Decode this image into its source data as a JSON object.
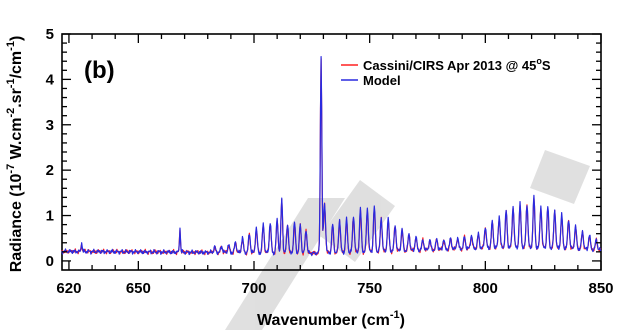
{
  "chart_data": {
    "type": "line",
    "panel_label": "(b)",
    "title": "",
    "xlabel": "Wavenumber",
    "xlabel_unit_base": "(cm",
    "xlabel_unit_exp": "-1",
    "xlabel_unit_close": ")",
    "ylabel": "Radiance (10",
    "ylabel_exp1": "-7",
    "ylabel_mid1": " W.cm",
    "ylabel_exp2": "-2",
    "ylabel_mid2": ".sr",
    "ylabel_exp3": "-1",
    "ylabel_mid3": "/cm",
    "ylabel_exp4": "-1",
    "ylabel_close": ")",
    "xlim": [
      617,
      850
    ],
    "ylim": [
      -0.2,
      5.0
    ],
    "xticks": [
      620,
      650,
      700,
      750,
      800,
      850
    ],
    "yticks": [
      0,
      1,
      2,
      3,
      4,
      5
    ],
    "grid": false,
    "legend_position": "top-right",
    "legend": {
      "entry1_text": "Cassini/CIRS Apr 2013 @ 45",
      "entry1_sup": "o",
      "entry1_tail": "S",
      "entry2_text": "Model"
    },
    "baseline": [
      [
        617,
        0.21
      ],
      [
        650,
        0.2
      ],
      [
        700,
        0.18
      ],
      [
        725,
        0.17
      ],
      [
        750,
        0.2
      ],
      [
        780,
        0.25
      ],
      [
        810,
        0.3
      ],
      [
        835,
        0.28
      ],
      [
        850,
        0.24
      ]
    ],
    "series": [
      {
        "name": "Cassini/CIRS Apr 2013 @ 45°S",
        "color": "#ff2020",
        "features": [
          [
            625.5,
            0.18,
            0.3
          ],
          [
            668.0,
            0.52,
            0.3
          ],
          [
            683,
            0.1,
            0.55
          ],
          [
            686,
            0.13,
            0.55
          ],
          [
            689,
            0.15,
            0.55
          ],
          [
            692,
            0.22,
            0.55
          ],
          [
            695,
            0.3,
            0.55
          ],
          [
            698,
            0.4,
            0.55
          ],
          [
            701,
            0.52,
            0.55
          ],
          [
            704,
            0.6,
            0.55
          ],
          [
            707,
            0.65,
            0.55
          ],
          [
            710,
            0.7,
            0.55
          ],
          [
            712,
            1.15,
            0.5
          ],
          [
            714.5,
            0.62,
            0.55
          ],
          [
            717.5,
            0.65,
            0.55
          ],
          [
            720,
            0.6,
            0.55
          ],
          [
            722.5,
            0.5,
            0.55
          ],
          [
            729.0,
            4.28,
            0.45
          ],
          [
            730.5,
            1.05,
            0.6
          ],
          [
            734,
            0.6,
            0.55
          ],
          [
            737,
            0.7,
            0.55
          ],
          [
            740,
            0.7,
            0.55
          ],
          [
            743,
            0.78,
            0.55
          ],
          [
            746,
            0.9,
            0.55
          ],
          [
            749,
            0.92,
            0.55
          ],
          [
            752,
            0.95,
            0.55
          ],
          [
            755,
            0.72,
            0.55
          ],
          [
            758,
            0.68,
            0.55
          ],
          [
            761,
            0.55,
            0.55
          ],
          [
            764,
            0.45,
            0.55
          ],
          [
            767,
            0.35,
            0.55
          ],
          [
            770,
            0.28,
            0.55
          ],
          [
            773,
            0.22,
            0.55
          ],
          [
            776,
            0.2,
            0.55
          ],
          [
            779,
            0.22,
            0.55
          ],
          [
            782,
            0.2,
            0.55
          ],
          [
            785,
            0.22,
            0.55
          ],
          [
            788,
            0.23,
            0.55
          ],
          [
            791,
            0.25,
            0.55
          ],
          [
            794,
            0.28,
            0.55
          ],
          [
            797,
            0.3,
            0.55
          ],
          [
            800,
            0.45,
            0.55
          ],
          [
            803,
            0.55,
            0.55
          ],
          [
            806,
            0.65,
            0.55
          ],
          [
            809,
            0.78,
            0.55
          ],
          [
            812,
            0.88,
            0.55
          ],
          [
            815,
            0.92,
            0.55
          ],
          [
            818,
            0.95,
            0.55
          ],
          [
            821,
            1.08,
            0.55
          ],
          [
            824,
            0.88,
            0.55
          ],
          [
            827,
            0.88,
            0.55
          ],
          [
            830,
            0.82,
            0.55
          ],
          [
            833,
            0.7,
            0.55
          ],
          [
            836,
            0.62,
            0.55
          ],
          [
            839,
            0.48,
            0.55
          ],
          [
            842,
            0.38,
            0.55
          ],
          [
            845,
            0.3,
            0.55
          ],
          [
            848,
            0.22,
            0.55
          ]
        ]
      },
      {
        "name": "Model",
        "color": "#2a2adf",
        "features": [
          [
            625.5,
            0.22,
            0.3
          ],
          [
            668.0,
            0.55,
            0.3
          ],
          [
            683,
            0.12,
            0.55
          ],
          [
            686,
            0.14,
            0.55
          ],
          [
            689,
            0.17,
            0.55
          ],
          [
            692,
            0.24,
            0.55
          ],
          [
            695,
            0.33,
            0.55
          ],
          [
            698,
            0.43,
            0.55
          ],
          [
            701,
            0.55,
            0.55
          ],
          [
            704,
            0.64,
            0.55
          ],
          [
            707,
            0.68,
            0.55
          ],
          [
            710,
            0.74,
            0.55
          ],
          [
            712,
            1.2,
            0.5
          ],
          [
            714.5,
            0.65,
            0.55
          ],
          [
            717.5,
            0.68,
            0.55
          ],
          [
            720,
            0.63,
            0.55
          ],
          [
            722.5,
            0.52,
            0.55
          ],
          [
            729.0,
            4.35,
            0.45
          ],
          [
            730.5,
            1.1,
            0.6
          ],
          [
            734,
            0.63,
            0.55
          ],
          [
            737,
            0.74,
            0.55
          ],
          [
            740,
            0.74,
            0.55
          ],
          [
            743,
            0.82,
            0.55
          ],
          [
            746,
            0.95,
            0.55
          ],
          [
            749,
            0.98,
            0.55
          ],
          [
            752,
            1.0,
            0.55
          ],
          [
            755,
            0.76,
            0.55
          ],
          [
            758,
            0.72,
            0.55
          ],
          [
            761,
            0.58,
            0.55
          ],
          [
            764,
            0.48,
            0.55
          ],
          [
            767,
            0.38,
            0.55
          ],
          [
            770,
            0.3,
            0.55
          ],
          [
            773,
            0.24,
            0.55
          ],
          [
            776,
            0.22,
            0.55
          ],
          [
            779,
            0.24,
            0.55
          ],
          [
            782,
            0.22,
            0.55
          ],
          [
            785,
            0.24,
            0.55
          ],
          [
            788,
            0.25,
            0.55
          ],
          [
            791,
            0.27,
            0.55
          ],
          [
            794,
            0.3,
            0.55
          ],
          [
            797,
            0.32,
            0.55
          ],
          [
            800,
            0.48,
            0.55
          ],
          [
            803,
            0.58,
            0.55
          ],
          [
            806,
            0.7,
            0.55
          ],
          [
            809,
            0.82,
            0.55
          ],
          [
            812,
            0.92,
            0.55
          ],
          [
            815,
            0.96,
            0.55
          ],
          [
            818,
            0.98,
            0.55
          ],
          [
            821,
            1.12,
            0.55
          ],
          [
            824,
            0.92,
            0.55
          ],
          [
            827,
            0.92,
            0.55
          ],
          [
            830,
            0.85,
            0.55
          ],
          [
            833,
            0.74,
            0.55
          ],
          [
            836,
            0.65,
            0.55
          ],
          [
            839,
            0.5,
            0.55
          ],
          [
            842,
            0.4,
            0.55
          ],
          [
            845,
            0.32,
            0.55
          ],
          [
            848,
            0.24,
            0.55
          ]
        ]
      }
    ]
  }
}
